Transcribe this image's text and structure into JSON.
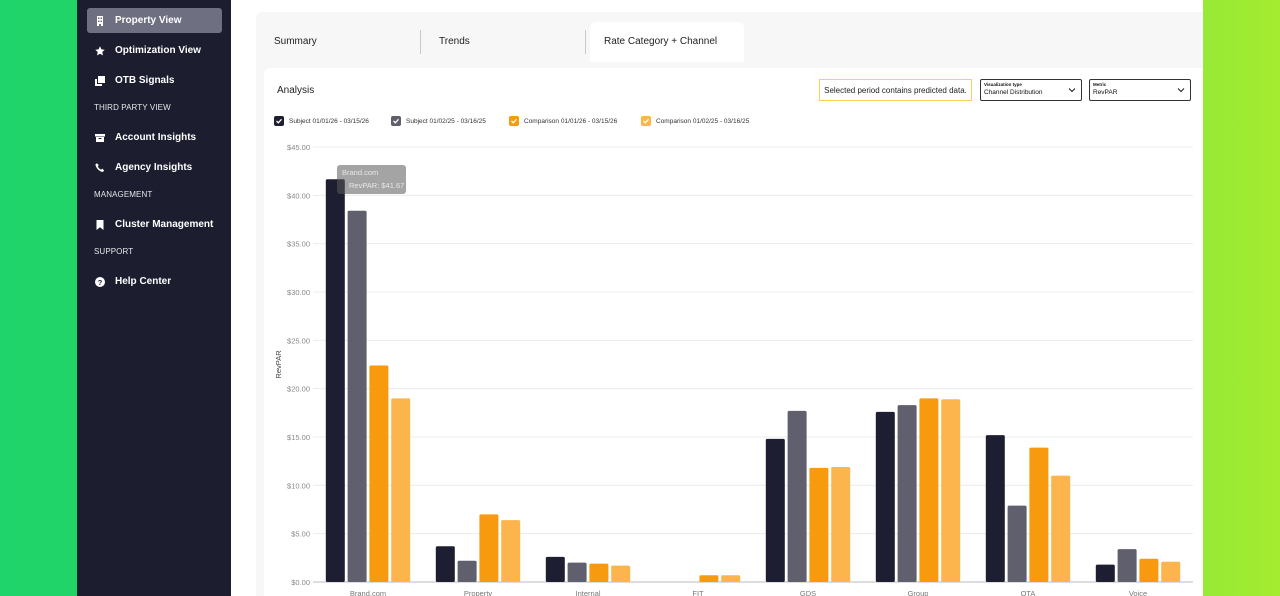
{
  "sidebar": {
    "items_top": [
      {
        "label": "Property View",
        "icon": "building-icon",
        "active": true
      },
      {
        "label": "Optimization View",
        "icon": "star-icon",
        "active": false
      },
      {
        "label": "OTB Signals",
        "icon": "copy-icon",
        "active": false
      }
    ],
    "sections": [
      {
        "label": "THIRD PARTY VIEW",
        "items": [
          {
            "label": "Account Insights",
            "icon": "archive-icon"
          },
          {
            "label": "Agency Insights",
            "icon": "phone-icon"
          }
        ]
      },
      {
        "label": "MANAGEMENT",
        "items": [
          {
            "label": "Cluster Management",
            "icon": "bookmark-icon"
          }
        ]
      },
      {
        "label": "SUPPORT",
        "items": [
          {
            "label": "Help Center",
            "icon": "question-icon"
          }
        ]
      }
    ]
  },
  "tabs": [
    "Summary",
    "Trends",
    "Rate Category + Channel"
  ],
  "active_tab": "Rate Category + Channel",
  "card": {
    "title": "Analysis",
    "notice": "Selected period contains predicted data.",
    "visualization": {
      "label": "Visualization type",
      "value": "Channel Distribution"
    },
    "metric": {
      "label": "Metric",
      "value": "RevPAR"
    }
  },
  "colors": {
    "sidebar_bg": "#1c1d2f",
    "subject_current": "#1e1e32",
    "subject_prior": "#5f5f6e",
    "comparison_current": "#f79a0e",
    "comparison_prior": "#fcb54c"
  },
  "chart_data": {
    "type": "bar",
    "ylabel": "RevPAR",
    "ylim": [
      0,
      45
    ],
    "yticks": [
      "$0.00",
      "$5.00",
      "$10.00",
      "$15.00",
      "$20.00",
      "$25.00",
      "$30.00",
      "$35.00",
      "$40.00",
      "$45.00"
    ],
    "categories": [
      "Brand.com",
      "Property",
      "Internal",
      "FIT",
      "GDS",
      "Group",
      "OTA",
      "Voice"
    ],
    "series": [
      {
        "name": "Subject 01/01/26 - 03/15/26",
        "color": "#1e1e32",
        "values": [
          41.67,
          3.7,
          2.6,
          0,
          14.8,
          17.6,
          15.2,
          1.8
        ]
      },
      {
        "name": "Subject 01/02/25 - 03/16/25",
        "color": "#5f5f6e",
        "values": [
          38.4,
          2.2,
          2.0,
          0,
          17.7,
          18.3,
          7.9,
          3.4
        ]
      },
      {
        "name": "Comparison 01/01/26 - 03/15/26",
        "color": "#f79a0e",
        "values": [
          22.4,
          7.0,
          1.9,
          0.7,
          11.8,
          19.0,
          13.9,
          2.4
        ]
      },
      {
        "name": "Comparison 01/02/25 - 03/16/25",
        "color": "#fcb54c",
        "values": [
          19.0,
          6.4,
          1.7,
          0.7,
          11.9,
          18.9,
          11.0,
          2.1
        ]
      }
    ],
    "tooltip": {
      "category": "Brand.com",
      "text": "RevPAR: $41.67"
    },
    "grid": true
  }
}
